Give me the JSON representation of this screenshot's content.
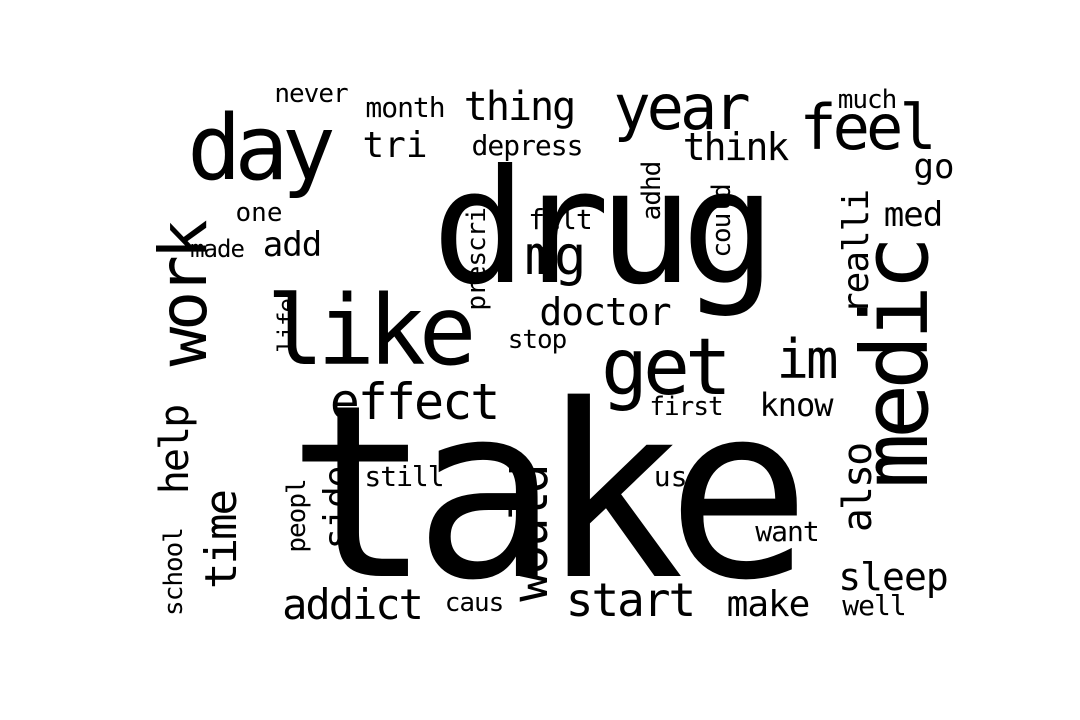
{
  "word_cloud": {
    "background_color": "#ffffff",
    "text_color": "#000000",
    "words": [
      {
        "text": "take",
        "orientation": "horizontal"
      },
      {
        "text": "drug",
        "orientation": "horizontal"
      },
      {
        "text": "medic",
        "orientation": "vertical"
      },
      {
        "text": "like",
        "orientation": "horizontal"
      },
      {
        "text": "work",
        "orientation": "vertical"
      },
      {
        "text": "day",
        "orientation": "horizontal"
      },
      {
        "text": "year",
        "orientation": "horizontal"
      },
      {
        "text": "feel",
        "orientation": "horizontal"
      },
      {
        "text": "get",
        "orientation": "horizontal"
      },
      {
        "text": "effect",
        "orientation": "horizontal"
      },
      {
        "text": "im",
        "orientation": "horizontal"
      },
      {
        "text": "mg",
        "orientation": "horizontal"
      },
      {
        "text": "would",
        "orientation": "vertical"
      },
      {
        "text": "start",
        "orientation": "horizontal"
      },
      {
        "text": "addict",
        "orientation": "horizontal"
      },
      {
        "text": "time",
        "orientation": "vertical"
      },
      {
        "text": "thing",
        "orientation": "horizontal"
      },
      {
        "text": "think",
        "orientation": "horizontal"
      },
      {
        "text": "doctor",
        "orientation": "horizontal"
      },
      {
        "text": "realli",
        "orientation": "vertical"
      },
      {
        "text": "also",
        "orientation": "vertical"
      },
      {
        "text": "sleep",
        "orientation": "horizontal"
      },
      {
        "text": "make",
        "orientation": "horizontal"
      },
      {
        "text": "help",
        "orientation": "vertical"
      },
      {
        "text": "side",
        "orientation": "vertical"
      },
      {
        "text": "tri",
        "orientation": "horizontal"
      },
      {
        "text": "add",
        "orientation": "horizontal"
      },
      {
        "text": "med",
        "orientation": "horizontal"
      },
      {
        "text": "know",
        "orientation": "horizontal"
      },
      {
        "text": "depress",
        "orientation": "horizontal"
      },
      {
        "text": "month",
        "orientation": "horizontal"
      },
      {
        "text": "never",
        "orientation": "horizontal"
      },
      {
        "text": "much",
        "orientation": "horizontal"
      },
      {
        "text": "go",
        "orientation": "horizontal"
      },
      {
        "text": "prescrib",
        "orientation": "vertical"
      },
      {
        "text": "felt",
        "orientation": "horizontal"
      },
      {
        "text": "adhd",
        "orientation": "vertical"
      },
      {
        "text": "could",
        "orientation": "vertical"
      },
      {
        "text": "one",
        "orientation": "horizontal"
      },
      {
        "text": "made",
        "orientation": "horizontal"
      },
      {
        "text": "life",
        "orientation": "vertical"
      },
      {
        "text": "stop",
        "orientation": "horizontal"
      },
      {
        "text": "first",
        "orientation": "horizontal"
      },
      {
        "text": "still",
        "orientation": "horizontal"
      },
      {
        "text": "use",
        "orientation": "horizontal"
      },
      {
        "text": "peopl",
        "orientation": "vertical"
      },
      {
        "text": "want",
        "orientation": "horizontal"
      },
      {
        "text": "school",
        "orientation": "vertical"
      },
      {
        "text": "caus",
        "orientation": "horizontal"
      },
      {
        "text": "well",
        "orientation": "horizontal"
      }
    ]
  }
}
